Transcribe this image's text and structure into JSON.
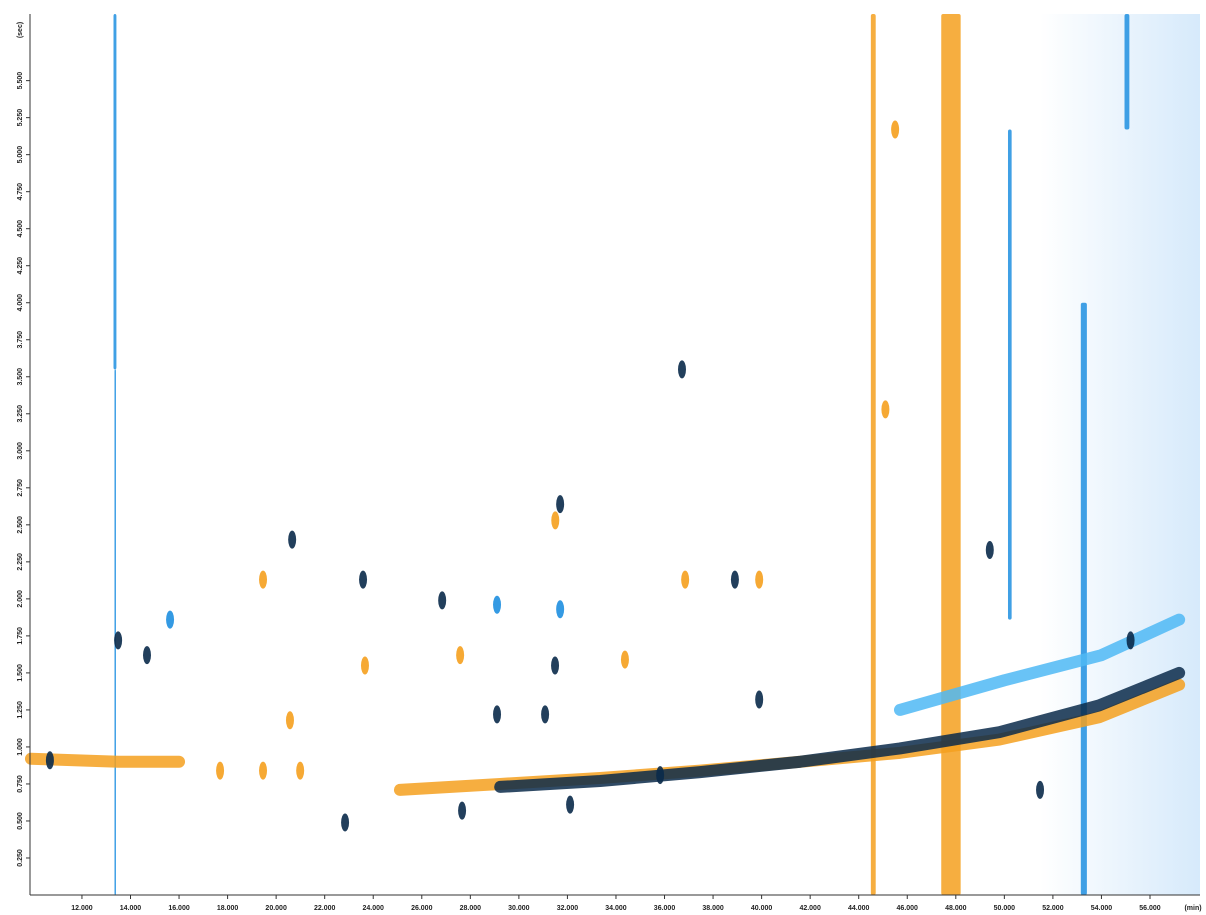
{
  "chart_data": {
    "type": "scatter",
    "x_label": "(min)",
    "y_label": "(sec)",
    "xlim": [
      9.86,
      58.06
    ],
    "ylim": [
      0,
      5.95
    ],
    "xticks": [
      {
        "value": 12,
        "label": "12.000"
      },
      {
        "value": 14,
        "label": "14.000"
      },
      {
        "value": 16,
        "label": "16.000"
      },
      {
        "value": 18,
        "label": "18.000"
      },
      {
        "value": 20,
        "label": "20.000"
      },
      {
        "value": 22,
        "label": "22.000"
      },
      {
        "value": 24,
        "label": "24.000"
      },
      {
        "value": 26,
        "label": "26.000"
      },
      {
        "value": 28,
        "label": "28.000"
      },
      {
        "value": 30,
        "label": "30.000"
      },
      {
        "value": 32,
        "label": "32.000"
      },
      {
        "value": 34,
        "label": "34.000"
      },
      {
        "value": 36,
        "label": "36.000"
      },
      {
        "value": 38,
        "label": "38.000"
      },
      {
        "value": 40,
        "label": "40.000"
      },
      {
        "value": 42,
        "label": "42.000"
      },
      {
        "value": 44,
        "label": "44.000"
      },
      {
        "value": 46,
        "label": "46.000"
      },
      {
        "value": 48,
        "label": "48.000"
      },
      {
        "value": 50,
        "label": "50.000"
      },
      {
        "value": 52,
        "label": "52.000"
      },
      {
        "value": 54,
        "label": "54.000"
      },
      {
        "value": 56,
        "label": "56.000"
      }
    ],
    "yticks": [
      {
        "value": 0.25,
        "label": "0.250"
      },
      {
        "value": 0.5,
        "label": "0.500"
      },
      {
        "value": 0.75,
        "label": "0.750"
      },
      {
        "value": 1,
        "label": "1.000"
      },
      {
        "value": 1.25,
        "label": "1.250"
      },
      {
        "value": 1.5,
        "label": "1.500"
      },
      {
        "value": 1.75,
        "label": "1.750"
      },
      {
        "value": 2,
        "label": "2.000"
      },
      {
        "value": 2.25,
        "label": "2.250"
      },
      {
        "value": 2.5,
        "label": "2.500"
      },
      {
        "value": 2.75,
        "label": "2.750"
      },
      {
        "value": 3,
        "label": "3.000"
      },
      {
        "value": 3.25,
        "label": "3.250"
      },
      {
        "value": 3.5,
        "label": "3.500"
      },
      {
        "value": 3.75,
        "label": "3.750"
      },
      {
        "value": 4,
        "label": "4.000"
      },
      {
        "value": 4.25,
        "label": "4.250"
      },
      {
        "value": 4.5,
        "label": "4.500"
      },
      {
        "value": 4.75,
        "label": "4.750"
      },
      {
        "value": 5,
        "label": "5.000"
      },
      {
        "value": 5.25,
        "label": "5.250"
      },
      {
        "value": 5.5,
        "label": "5.500"
      }
    ],
    "streaks": [
      {
        "color": "#1e8fe0",
        "x": [
          13.3,
          13.42
        ],
        "y": [
          3.55,
          5.95
        ]
      },
      {
        "color": "#1e8fe0",
        "x": [
          13.34,
          13.38
        ],
        "y": [
          0,
          3.55
        ]
      },
      {
        "color": "#f5a01e",
        "x": [
          44.5,
          44.7
        ],
        "y": [
          0,
          5.95
        ]
      },
      {
        "color": "#f5a01e",
        "x": [
          47.4,
          48.2
        ],
        "y": [
          0,
          5.95
        ]
      },
      {
        "color": "#1e8fe0",
        "x": [
          50.15,
          50.3
        ],
        "y": [
          1.86,
          5.17
        ]
      },
      {
        "color": "#1e8fe0",
        "x": [
          53.15,
          53.4
        ],
        "y": [
          0,
          4.0
        ]
      },
      {
        "color": "#1e8fe0",
        "x": [
          54.95,
          55.15
        ],
        "y": [
          5.17,
          5.95
        ]
      }
    ],
    "lines": [
      {
        "color": "#f5a01e",
        "x": [
          9.9,
          13.5,
          16.0
        ],
        "values": [
          0.92,
          0.9,
          0.9
        ]
      },
      {
        "color": "#f5a01e",
        "x": [
          25.1,
          29.23,
          33.35,
          37.47,
          41.6,
          45.7,
          49.8,
          53.9,
          57.2
        ],
        "values": [
          0.71,
          0.75,
          0.79,
          0.84,
          0.9,
          0.96,
          1.05,
          1.2,
          1.42
        ]
      },
      {
        "color": "#0a2a4a",
        "x": [
          29.23,
          33.35,
          37.47,
          41.6,
          45.7,
          49.8,
          53.9,
          57.2
        ],
        "values": [
          0.73,
          0.77,
          0.83,
          0.9,
          0.99,
          1.1,
          1.28,
          1.5
        ]
      },
      {
        "color": "#4fb8f5",
        "x": [
          45.7,
          50.0,
          54.0,
          57.2
        ],
        "values": [
          1.25,
          1.45,
          1.62,
          1.86
        ]
      }
    ],
    "series": [
      {
        "color": "#f5a01e",
        "x": [
          19.46,
          23.66,
          20.57,
          17.69,
          19.46,
          20.99,
          27.58,
          31.5,
          36.85,
          34.37,
          39.9,
          45.5,
          45.1
        ],
        "values": [
          2.13,
          1.55,
          1.18,
          0.84,
          0.84,
          0.84,
          1.62,
          2.53,
          2.13,
          1.59,
          2.13,
          5.17,
          3.28
        ]
      },
      {
        "color": "#1e8fe0",
        "x": [
          15.63,
          29.1,
          31.7
        ],
        "values": [
          1.86,
          1.96,
          1.93
        ]
      },
      {
        "color": "#0a2a4a",
        "x": [
          10.68,
          13.49,
          14.68,
          20.66,
          22.84,
          23.58,
          26.84,
          27.66,
          29.1,
          31.7,
          31.08,
          32.11,
          31.49,
          36.72,
          35.82,
          38.9,
          39.9,
          49.4,
          51.47,
          55.2
        ],
        "values": [
          0.91,
          1.72,
          1.62,
          2.4,
          0.49,
          2.13,
          1.99,
          0.57,
          1.22,
          2.64,
          1.22,
          0.61,
          1.55,
          3.55,
          0.81,
          2.13,
          1.32,
          2.33,
          0.71,
          1.72
        ]
      }
    ]
  }
}
